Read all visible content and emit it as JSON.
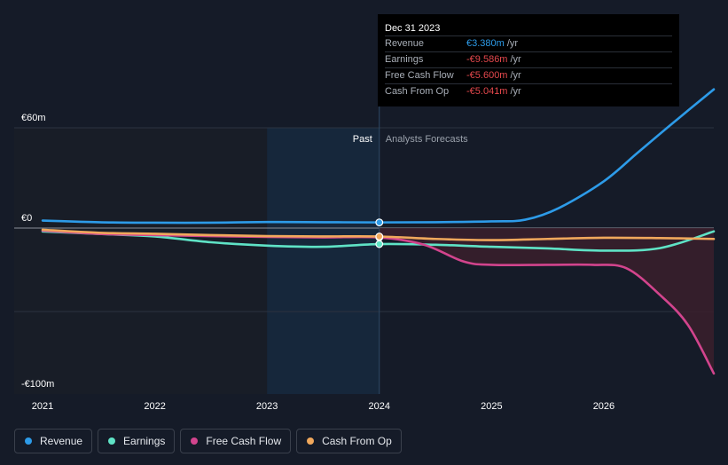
{
  "chart_data": {
    "type": "line",
    "y_ticks": [
      {
        "label": "€60m",
        "value": 60
      },
      {
        "label": "€0",
        "value": 0
      },
      {
        "label": "-€100m",
        "value": -100
      }
    ],
    "ylim": [
      -100,
      60
    ],
    "xlim": [
      2021,
      2026.98
    ],
    "x_ticks": [
      "2021",
      "2022",
      "2023",
      "2024",
      "2025",
      "2026"
    ],
    "past_label": "Past",
    "forecast_label": "Analysts Forecasts",
    "divider_x": 2024,
    "past_region_start": 2023,
    "series": [
      {
        "name": "Revenue",
        "color": "#2d9be8",
        "points": [
          [
            2021,
            4.5
          ],
          [
            2021.5,
            3.5
          ],
          [
            2022,
            3.2
          ],
          [
            2022.5,
            3.2
          ],
          [
            2023,
            3.6
          ],
          [
            2023.5,
            3.5
          ],
          [
            2024,
            3.38
          ],
          [
            2024.5,
            3.5
          ],
          [
            2025,
            4
          ],
          [
            2025.3,
            5
          ],
          [
            2025.6,
            12
          ],
          [
            2026,
            28
          ],
          [
            2026.3,
            45
          ],
          [
            2026.6,
            62
          ],
          [
            2026.98,
            83
          ]
        ]
      },
      {
        "name": "Earnings",
        "color": "#5fe3c6",
        "points": [
          [
            2021,
            -2
          ],
          [
            2021.5,
            -3.5
          ],
          [
            2022,
            -5
          ],
          [
            2022.5,
            -8.5
          ],
          [
            2023,
            -10.5
          ],
          [
            2023.5,
            -11.2
          ],
          [
            2024,
            -9.586
          ],
          [
            2024.5,
            -10
          ],
          [
            2025,
            -11.2
          ],
          [
            2025.5,
            -12.2
          ],
          [
            2026,
            -13.5
          ],
          [
            2026.5,
            -12
          ],
          [
            2026.98,
            -2
          ]
        ]
      },
      {
        "name": "Free Cash Flow",
        "color": "#d2448d",
        "points": [
          [
            2021,
            -1.5
          ],
          [
            2021.5,
            -3.5
          ],
          [
            2022,
            -4.2
          ],
          [
            2022.5,
            -4.8
          ],
          [
            2023,
            -5.3
          ],
          [
            2023.5,
            -5.6
          ],
          [
            2024,
            -5.6
          ],
          [
            2024.4,
            -10
          ],
          [
            2024.75,
            -20
          ],
          [
            2025,
            -22
          ],
          [
            2025.5,
            -22
          ],
          [
            2025.9,
            -22
          ],
          [
            2026.2,
            -24
          ],
          [
            2026.5,
            -40
          ],
          [
            2026.75,
            -58
          ],
          [
            2026.98,
            -87
          ]
        ]
      },
      {
        "name": "Cash From Op",
        "color": "#f0a85c",
        "points": [
          [
            2021,
            -1
          ],
          [
            2021.5,
            -2.8
          ],
          [
            2022,
            -3.4
          ],
          [
            2022.5,
            -4.2
          ],
          [
            2023,
            -4.8
          ],
          [
            2023.5,
            -5
          ],
          [
            2024,
            -5.041
          ],
          [
            2024.5,
            -6.5
          ],
          [
            2025,
            -7.2
          ],
          [
            2025.5,
            -6.5
          ],
          [
            2026,
            -5.8
          ],
          [
            2026.5,
            -6
          ],
          [
            2026.98,
            -6.5
          ]
        ]
      }
    ]
  },
  "tooltip": {
    "date": "Dec 31 2023",
    "rows": [
      {
        "label": "Revenue",
        "value": "€3.380m",
        "unit": "/yr",
        "color": "#2d9be8"
      },
      {
        "label": "Earnings",
        "value": "-€9.586m",
        "unit": "/yr",
        "color": "#e5484d"
      },
      {
        "label": "Free Cash Flow",
        "value": "-€5.600m",
        "unit": "/yr",
        "color": "#e5484d"
      },
      {
        "label": "Cash From Op",
        "value": "-€5.041m",
        "unit": "/yr",
        "color": "#e5484d"
      }
    ]
  },
  "legend": [
    {
      "label": "Revenue",
      "color": "#2d9be8"
    },
    {
      "label": "Earnings",
      "color": "#5fe3c6"
    },
    {
      "label": "Free Cash Flow",
      "color": "#d2448d"
    },
    {
      "label": "Cash From Op",
      "color": "#f0a85c"
    }
  ]
}
